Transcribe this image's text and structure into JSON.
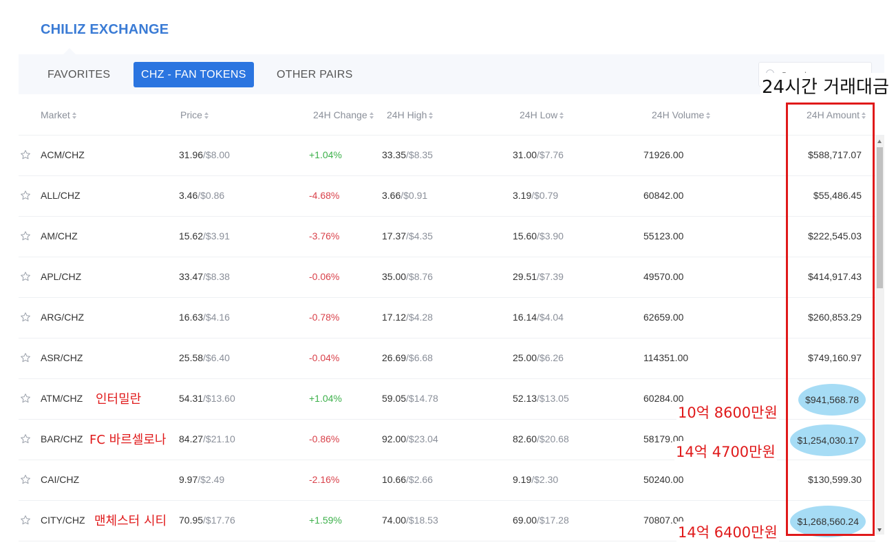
{
  "app": {
    "title": "CHILIZ EXCHANGE"
  },
  "tabs": [
    {
      "label": "FAVORITES",
      "active": false
    },
    {
      "label": "CHZ - FAN TOKENS",
      "active": true
    },
    {
      "label": "OTHER PAIRS",
      "active": false
    }
  ],
  "search": {
    "placeholder": "Search"
  },
  "annotation": {
    "title": "24시간 거래대금",
    "amounts": [
      "10억 8600만원",
      "14억 4700만원",
      "14억 6400만원"
    ]
  },
  "columns": [
    "Market",
    "Price",
    "24H Change",
    "24H High",
    "24H Low",
    "24H Volume",
    "24H Amount"
  ],
  "rows": [
    {
      "market": "ACM/CHZ",
      "price": "31.96",
      "price_usd": "/$8.00",
      "change": "+1.04%",
      "dir": "pos",
      "high": "33.35",
      "high_usd": "/$8.35",
      "low": "31.00",
      "low_usd": "/$7.76",
      "volume": "71926.00",
      "amount": "$588,717.07",
      "note": "",
      "highlight": false
    },
    {
      "market": "ALL/CHZ",
      "price": "3.46",
      "price_usd": "/$0.86",
      "change": "-4.68%",
      "dir": "neg",
      "high": "3.66",
      "high_usd": "/$0.91",
      "low": "3.19",
      "low_usd": "/$0.79",
      "volume": "60842.00",
      "amount": "$55,486.45",
      "note": "",
      "highlight": false
    },
    {
      "market": "AM/CHZ",
      "price": "15.62",
      "price_usd": "/$3.91",
      "change": "-3.76%",
      "dir": "neg",
      "high": "17.37",
      "high_usd": "/$4.35",
      "low": "15.60",
      "low_usd": "/$3.90",
      "volume": "55123.00",
      "amount": "$222,545.03",
      "note": "",
      "highlight": false
    },
    {
      "market": "APL/CHZ",
      "price": "33.47",
      "price_usd": "/$8.38",
      "change": "-0.06%",
      "dir": "neg",
      "high": "35.00",
      "high_usd": "/$8.76",
      "low": "29.51",
      "low_usd": "/$7.39",
      "volume": "49570.00",
      "amount": "$414,917.43",
      "note": "",
      "highlight": false
    },
    {
      "market": "ARG/CHZ",
      "price": "16.63",
      "price_usd": "/$4.16",
      "change": "-0.78%",
      "dir": "neg",
      "high": "17.12",
      "high_usd": "/$4.28",
      "low": "16.14",
      "low_usd": "/$4.04",
      "volume": "62659.00",
      "amount": "$260,853.29",
      "note": "",
      "highlight": false
    },
    {
      "market": "ASR/CHZ",
      "price": "25.58",
      "price_usd": "/$6.40",
      "change": "-0.04%",
      "dir": "neg",
      "high": "26.69",
      "high_usd": "/$6.68",
      "low": "25.00",
      "low_usd": "/$6.26",
      "volume": "114351.00",
      "amount": "$749,160.97",
      "note": "",
      "highlight": false
    },
    {
      "market": "ATM/CHZ",
      "price": "54.31",
      "price_usd": "/$13.60",
      "change": "+1.04%",
      "dir": "pos",
      "high": "59.05",
      "high_usd": "/$14.78",
      "low": "52.13",
      "low_usd": "/$13.05",
      "volume": "60284.00",
      "amount": "$941,568.78",
      "note": "인터밀란",
      "highlight": true
    },
    {
      "market": "BAR/CHZ",
      "price": "84.27",
      "price_usd": "/$21.10",
      "change": "-0.86%",
      "dir": "neg",
      "high": "92.00",
      "high_usd": "/$23.04",
      "low": "82.60",
      "low_usd": "/$20.68",
      "volume": "58179.00",
      "amount": "$1,254,030.17",
      "note": "FC 바르셀로나",
      "highlight": true
    },
    {
      "market": "CAI/CHZ",
      "price": "9.97",
      "price_usd": "/$2.49",
      "change": "-2.16%",
      "dir": "neg",
      "high": "10.66",
      "high_usd": "/$2.66",
      "low": "9.19",
      "low_usd": "/$2.30",
      "volume": "50240.00",
      "amount": "$130,599.30",
      "note": "",
      "highlight": false
    },
    {
      "market": "CITY/CHZ",
      "price": "70.95",
      "price_usd": "/$17.76",
      "change": "+1.59%",
      "dir": "pos",
      "high": "74.00",
      "high_usd": "/$18.53",
      "low": "69.00",
      "low_usd": "/$17.28",
      "volume": "70807.00",
      "amount": "$1,268,560.24",
      "note": "맨체스터 시티",
      "highlight": true
    }
  ],
  "colors": {
    "brand": "#3a7bd5",
    "active_tab": "#2b75e0",
    "positive": "#3cb04a",
    "negative": "#d9414a",
    "annotation": "#e0191a",
    "highlight": "#a6dcf5"
  }
}
